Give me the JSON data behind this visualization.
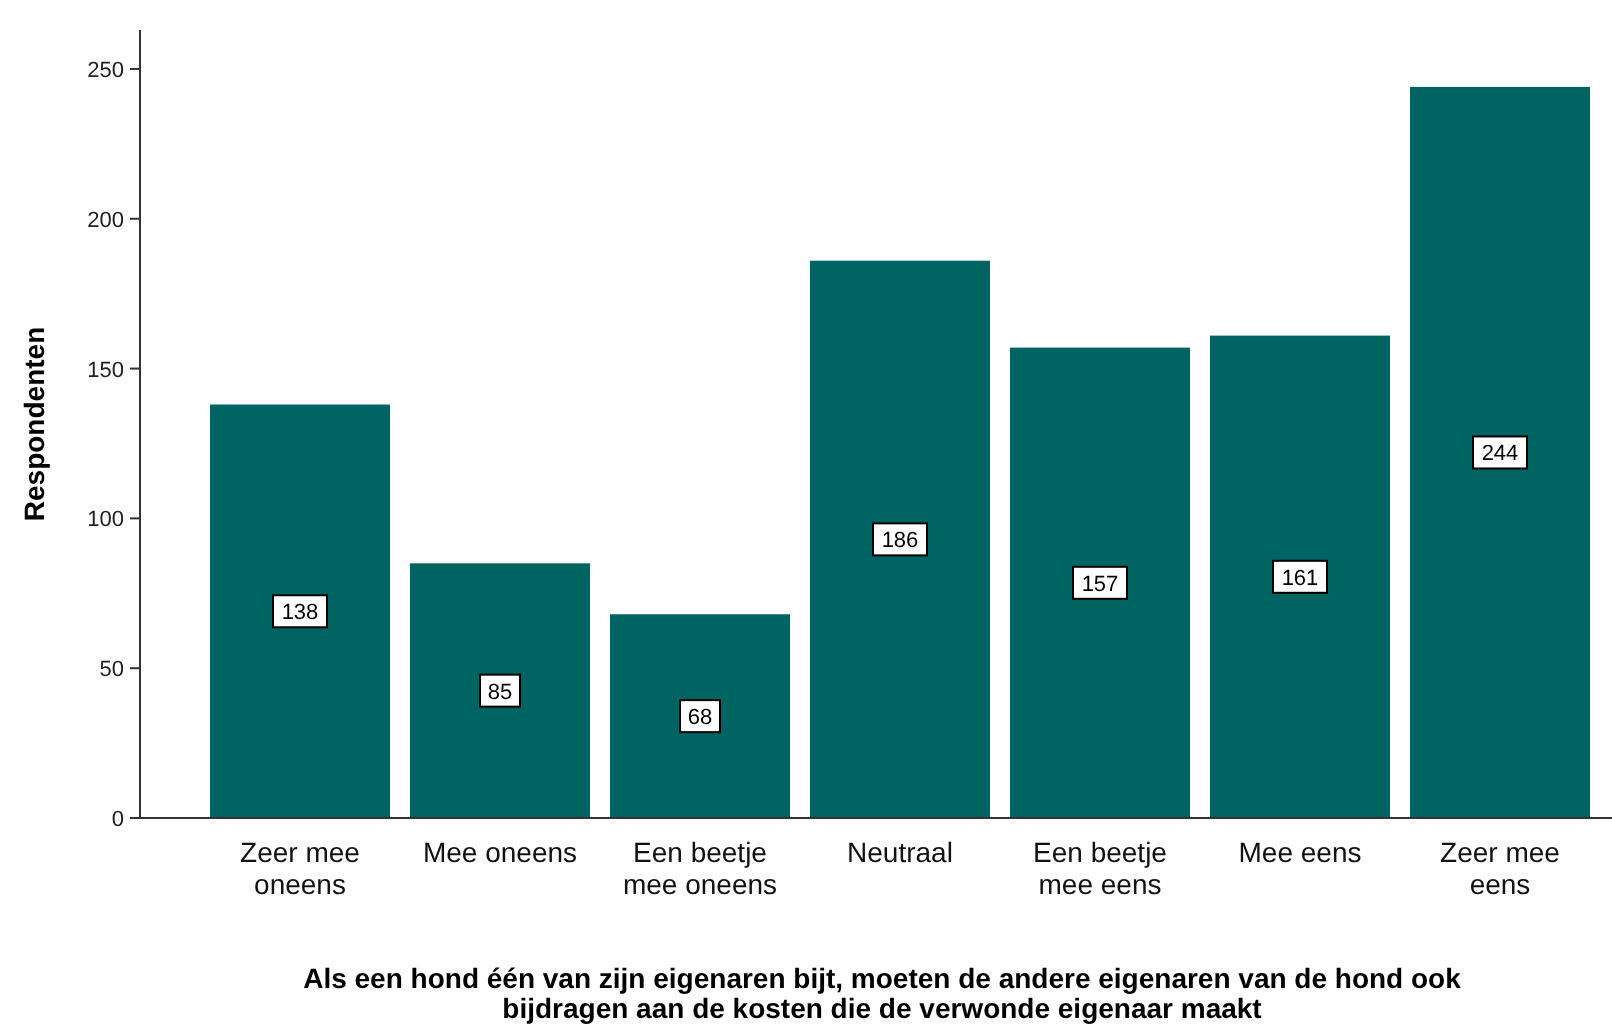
{
  "chart_data": {
    "type": "bar",
    "xlabel": "Als een hond één van zijn eigenaren bijt, moeten de andere eigenaren van de hond ook bijdragen aan de kosten die de verwonde eigenaar maakt",
    "ylabel": "Respondenten",
    "categories": [
      "Zeer mee oneens",
      "Mee oneens",
      "Een beetje mee oneens",
      "Neutraal",
      "Een beetje mee eens",
      "Mee eens",
      "Zeer mee eens"
    ],
    "values": [
      138,
      85,
      68,
      186,
      157,
      161,
      244
    ],
    "color": "#006562",
    "ylim": [
      0,
      263
    ],
    "yticks": [
      0,
      50,
      100,
      150,
      200,
      250
    ],
    "grid": false,
    "data_labels": true
  }
}
